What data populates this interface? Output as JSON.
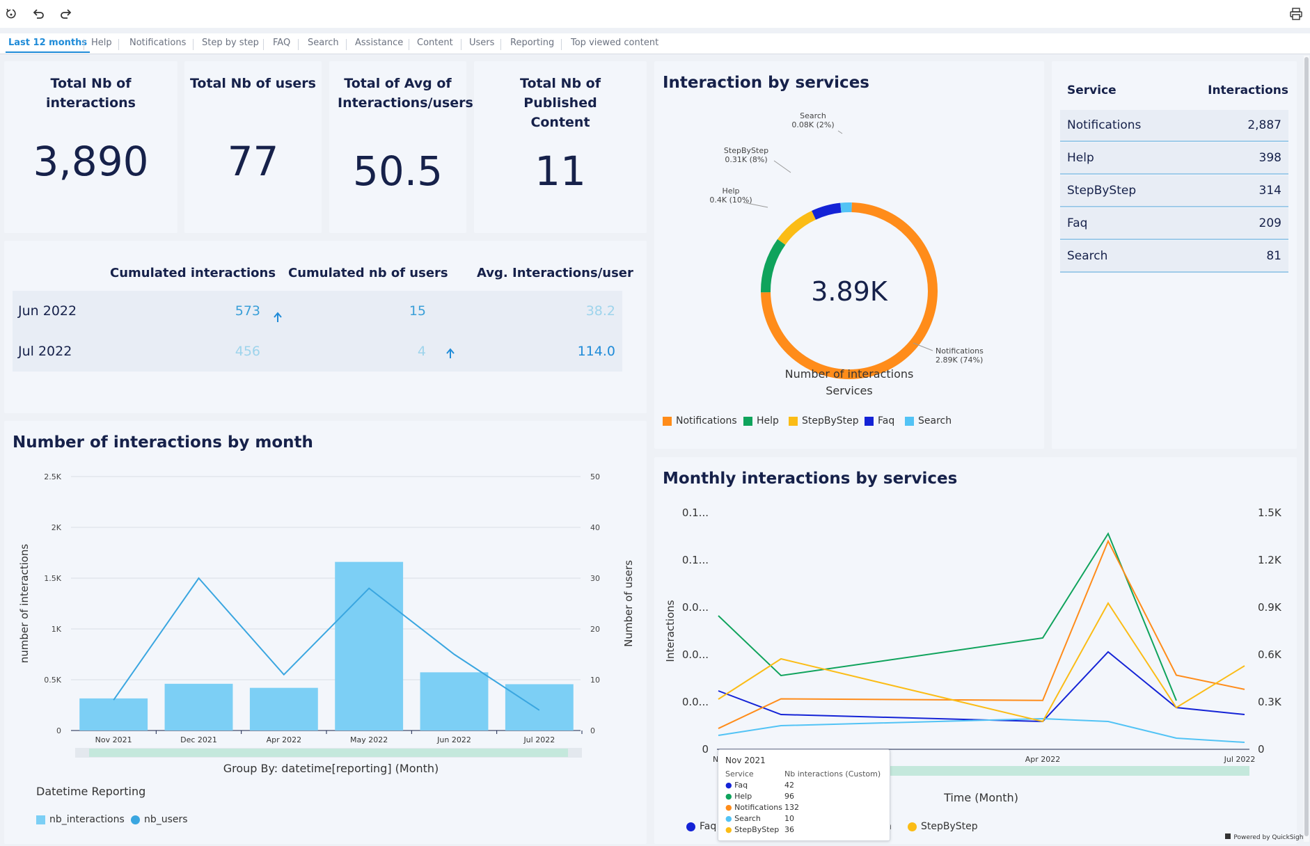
{
  "tabs": [
    "Last 12 months",
    "Help",
    "Notifications",
    "Step by step",
    "FAQ",
    "Search",
    "Assistance",
    "Content",
    "Users",
    "Reporting",
    "Top viewed content"
  ],
  "toolbar": {
    "icons": [
      "reset-icon",
      "undo-icon",
      "redo-icon",
      "print-icon"
    ]
  },
  "kpis": [
    {
      "title": "Total Nb of interactions",
      "value": "3,890"
    },
    {
      "title": "Total Nb of users",
      "value": "77"
    },
    {
      "title": "Total of Avg of Interactions/users",
      "value": "50.5"
    },
    {
      "title": "Total Nb of Published Content",
      "value": "11"
    }
  ],
  "cumulated": {
    "headers": [
      "Cumulated interactions",
      "Cumulated nb of users",
      "Avg. Interactions/user"
    ],
    "rows": [
      {
        "month": "Jun 2022",
        "interactions": "573",
        "users": "15",
        "avg": "38.2"
      },
      {
        "month": "Jul 2022",
        "interactions": "456",
        "users": "4",
        "avg": "114.0"
      }
    ]
  },
  "donut": {
    "title": "Interaction by services",
    "center": "3.89K",
    "caption1": "Number of interactions",
    "caption2": "Services",
    "labels": [
      {
        "name": "Search",
        "detail": "0.08K (2%)"
      },
      {
        "name": "StepByStep",
        "detail": "0.31K (8%)"
      },
      {
        "name": "Help",
        "detail": "0.4K (10%)"
      },
      {
        "name": "Notifications",
        "detail": "2.89K (74%)"
      }
    ],
    "legend": [
      "Notifications",
      "Help",
      "StepByStep",
      "Faq",
      "Search"
    ]
  },
  "service_table": {
    "headers": [
      "Service",
      "Interactions"
    ],
    "rows": [
      {
        "service": "Notifications",
        "value": "2,887"
      },
      {
        "service": "Help",
        "value": "398"
      },
      {
        "service": "StepByStep",
        "value": "314"
      },
      {
        "service": "Faq",
        "value": "209"
      },
      {
        "service": "Search",
        "value": "81"
      }
    ]
  },
  "monthly": {
    "title": "Number of interactions by month",
    "xlabel": "Group By: datetime[reporting] (Month)",
    "ylabel_left": "number of interactions",
    "ylabel_right": "Number of users",
    "legend_title": "Datetime Reporting",
    "legend": [
      "nb_interactions",
      "nb_users"
    ]
  },
  "services_line": {
    "title": "Monthly interactions by services",
    "xlabel": "Time (Month)",
    "ylabel": "Interactions",
    "left_ticks": [
      "0.1...",
      "0.1...",
      "0.0...",
      "0.0...",
      "0.0...",
      "0"
    ],
    "x_ticks": [
      "Nov",
      "Apr 2022",
      "Jul 2022"
    ],
    "legend": [
      "Faq",
      "h",
      "StepByStep"
    ]
  },
  "tooltip": {
    "title": "Nov 2021",
    "col1": "Service",
    "col2": "Nb interactions (Custom)",
    "rows": [
      {
        "service": "Faq",
        "value": "42"
      },
      {
        "service": "Help",
        "value": "96"
      },
      {
        "service": "Notifications",
        "value": "132"
      },
      {
        "service": "Search",
        "value": "10"
      },
      {
        "service": "StepByStep",
        "value": "36"
      }
    ]
  },
  "powered_by": "Powered by QuickSight",
  "colors": {
    "notifications": "#ff8c1a",
    "help": "#0fa35c",
    "stepbystep": "#fbbc16",
    "faq": "#1423d6",
    "search": "#52c3f5",
    "bar": "#7ccff5",
    "users_line": "#3aa6e0",
    "accent": "#1f8bd8"
  },
  "chart_data": [
    {
      "type": "pie",
      "title": "Interaction by services",
      "categories": [
        "Notifications",
        "Help",
        "StepByStep",
        "Faq",
        "Search"
      ],
      "values": [
        2887,
        398,
        314,
        209,
        81
      ]
    },
    {
      "type": "bar",
      "title": "Number of interactions by month",
      "categories": [
        "Nov 2021",
        "Dec 2021",
        "Apr 2022",
        "May 2022",
        "Jun 2022",
        "Jul 2022"
      ],
      "series": [
        {
          "name": "nb_interactions",
          "values": [
            316,
            460,
            420,
            1660,
            573,
            456
          ]
        },
        {
          "name": "nb_users",
          "values": [
            6,
            30,
            11,
            28,
            15,
            4
          ]
        }
      ],
      "xlabel": "Group By: datetime[reporting] (Month)",
      "ylabel": "number of interactions",
      "ylim": [
        0,
        2500
      ],
      "y2label": "Number of users",
      "y2lim": [
        0,
        50
      ]
    },
    {
      "type": "line",
      "title": "Monthly interactions by services",
      "x": [
        "Nov 2021",
        "Dec 2021",
        "Apr 2022",
        "May 2022",
        "Jun 2022",
        "Jul 2022"
      ],
      "series": [
        {
          "name": "Faq",
          "values": [
            42,
            25,
            20,
            70,
            30,
            25
          ]
        },
        {
          "name": "Help",
          "values": [
            96,
            53,
            80,
            155,
            35,
            null
          ]
        },
        {
          "name": "Notifications",
          "values": [
            132,
            320,
            310,
            1320,
            470,
            380
          ]
        },
        {
          "name": "Search",
          "values": [
            10,
            17,
            22,
            20,
            8,
            5
          ]
        },
        {
          "name": "StepByStep",
          "values": [
            36,
            65,
            20,
            105,
            30,
            60
          ]
        }
      ],
      "xlabel": "Time (Month)",
      "ylabel": "Interactions",
      "y2lim": [
        0,
        1500
      ]
    }
  ]
}
